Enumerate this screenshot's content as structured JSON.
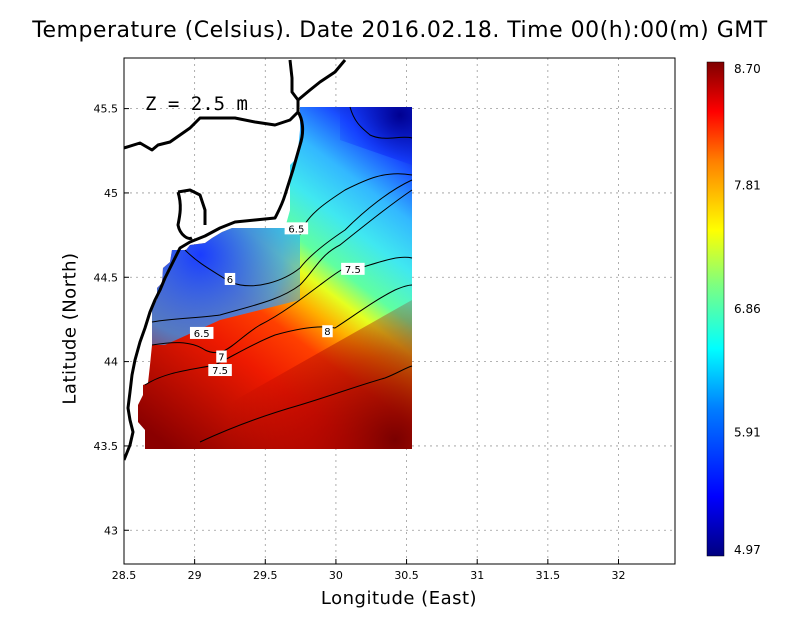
{
  "chart_data": {
    "type": "heatmap",
    "title": "Temperature (Celsius). Date 2016.02.18. Time 00(h):00(m)  GMT",
    "xlabel": "Longitude (East)",
    "ylabel": "Latitude (North)",
    "xlim": [
      28.5,
      32.4
    ],
    "ylim": [
      42.8,
      45.8
    ],
    "x_ticks": [
      28.5,
      29,
      29.5,
      30,
      30.5,
      31,
      31.5,
      32
    ],
    "x_tick_labels": [
      "28.5",
      "29",
      "29.5",
      "30",
      "30.5",
      "31",
      "31.5",
      "32"
    ],
    "y_ticks": [
      43,
      43.5,
      44,
      44.5,
      45,
      45.5
    ],
    "y_tick_labels": [
      "43",
      "43.5",
      "44",
      "44.5",
      "45",
      "45.5"
    ],
    "grid": true,
    "annotation": "Z = 2.5 m",
    "colorbar": {
      "min": 4.97,
      "max": 8.7,
      "tick_labels": [
        "8.70",
        "7.81",
        "6.86",
        "5.91",
        "4.97"
      ],
      "colormap": [
        "#00007f",
        "#0000ff",
        "#007fff",
        "#00ffff",
        "#7fff7f",
        "#ffff00",
        "#ff7f00",
        "#ff0000",
        "#7f0000"
      ]
    },
    "data_extent": {
      "lon": [
        28.64,
        30.55
      ],
      "lat": [
        43.48,
        45.5
      ]
    },
    "contour_labels": [
      {
        "value": "6.5",
        "lon": 29.72,
        "lat": 44.79
      },
      {
        "value": "7.5",
        "lon": 30.12,
        "lat": 44.55
      },
      {
        "value": "6",
        "lon": 29.25,
        "lat": 44.49
      },
      {
        "value": "6.5",
        "lon": 29.05,
        "lat": 44.17
      },
      {
        "value": "8",
        "lon": 29.94,
        "lat": 44.18
      },
      {
        "value": "7",
        "lon": 29.19,
        "lat": 44.03
      },
      {
        "value": "7.5",
        "lon": 29.18,
        "lat": 43.95
      }
    ]
  }
}
